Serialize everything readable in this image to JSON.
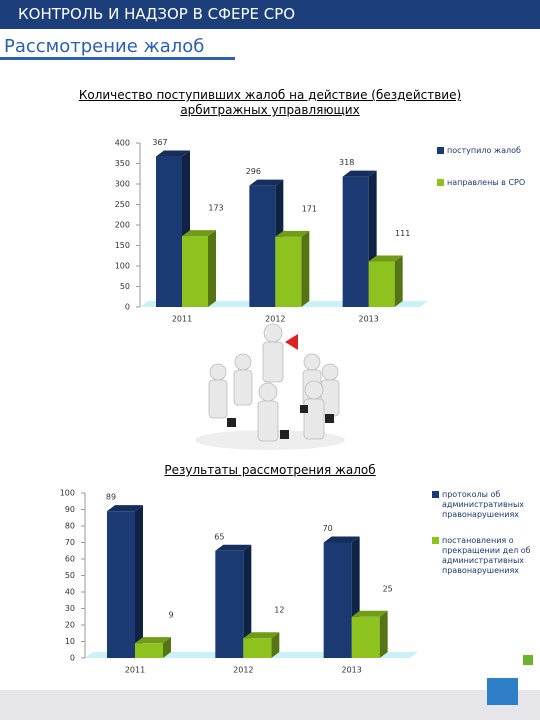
{
  "header": {
    "title": "КОНТРОЛЬ И НАДЗОР В СФЕРЕ СРО",
    "subtitle": "Рассмотрение жалоб"
  },
  "chart_data": [
    {
      "type": "bar",
      "title": "Количество поступивших жалоб на действие (бездействие) арбитражных управляющих",
      "categories": [
        "2011",
        "2012",
        "2013"
      ],
      "series": [
        {
          "name": "поступило жалоб",
          "color": "#1b3a73",
          "values": [
            367,
            296,
            318
          ]
        },
        {
          "name": "направлены в СРО",
          "color": "#8dc21f",
          "values": [
            173,
            171,
            111
          ]
        }
      ],
      "ylim": [
        0,
        400
      ],
      "yticks": [
        0,
        50,
        100,
        150,
        200,
        250,
        300,
        350,
        400
      ],
      "grid": false,
      "legend": "right"
    },
    {
      "type": "bar",
      "title": "Результаты рассмотрения жалоб",
      "categories": [
        "2011",
        "2012",
        "2013"
      ],
      "series": [
        {
          "name": "протоколы об административных правонарушениях",
          "color": "#1b3a73",
          "values": [
            89,
            65,
            70
          ]
        },
        {
          "name": "постановления о прекращении дел об административных правонарушениях",
          "color": "#8dc21f",
          "values": [
            9,
            12,
            25
          ]
        }
      ],
      "ylim": [
        0,
        100
      ],
      "yticks": [
        0,
        10,
        20,
        30,
        40,
        50,
        60,
        70,
        80,
        90,
        100
      ],
      "grid": false,
      "legend": "right"
    }
  ]
}
